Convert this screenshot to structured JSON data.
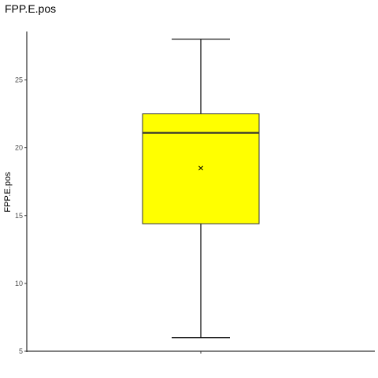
{
  "chart_data": {
    "type": "box",
    "title": "FPP.E.pos",
    "xlabel": "",
    "ylabel": "FPP.E.pos",
    "ylim": [
      5,
      29
    ],
    "yticks": [
      5,
      10,
      15,
      20,
      25
    ],
    "grid": false,
    "legend": "none",
    "box": {
      "min": 6,
      "q1": 14.4,
      "median": 21.1,
      "q3": 22.5,
      "max": 28,
      "mean": 18.5
    },
    "colors": {
      "box_fill": "#FFFF00",
      "line": "#000000",
      "median": "#333333"
    }
  }
}
